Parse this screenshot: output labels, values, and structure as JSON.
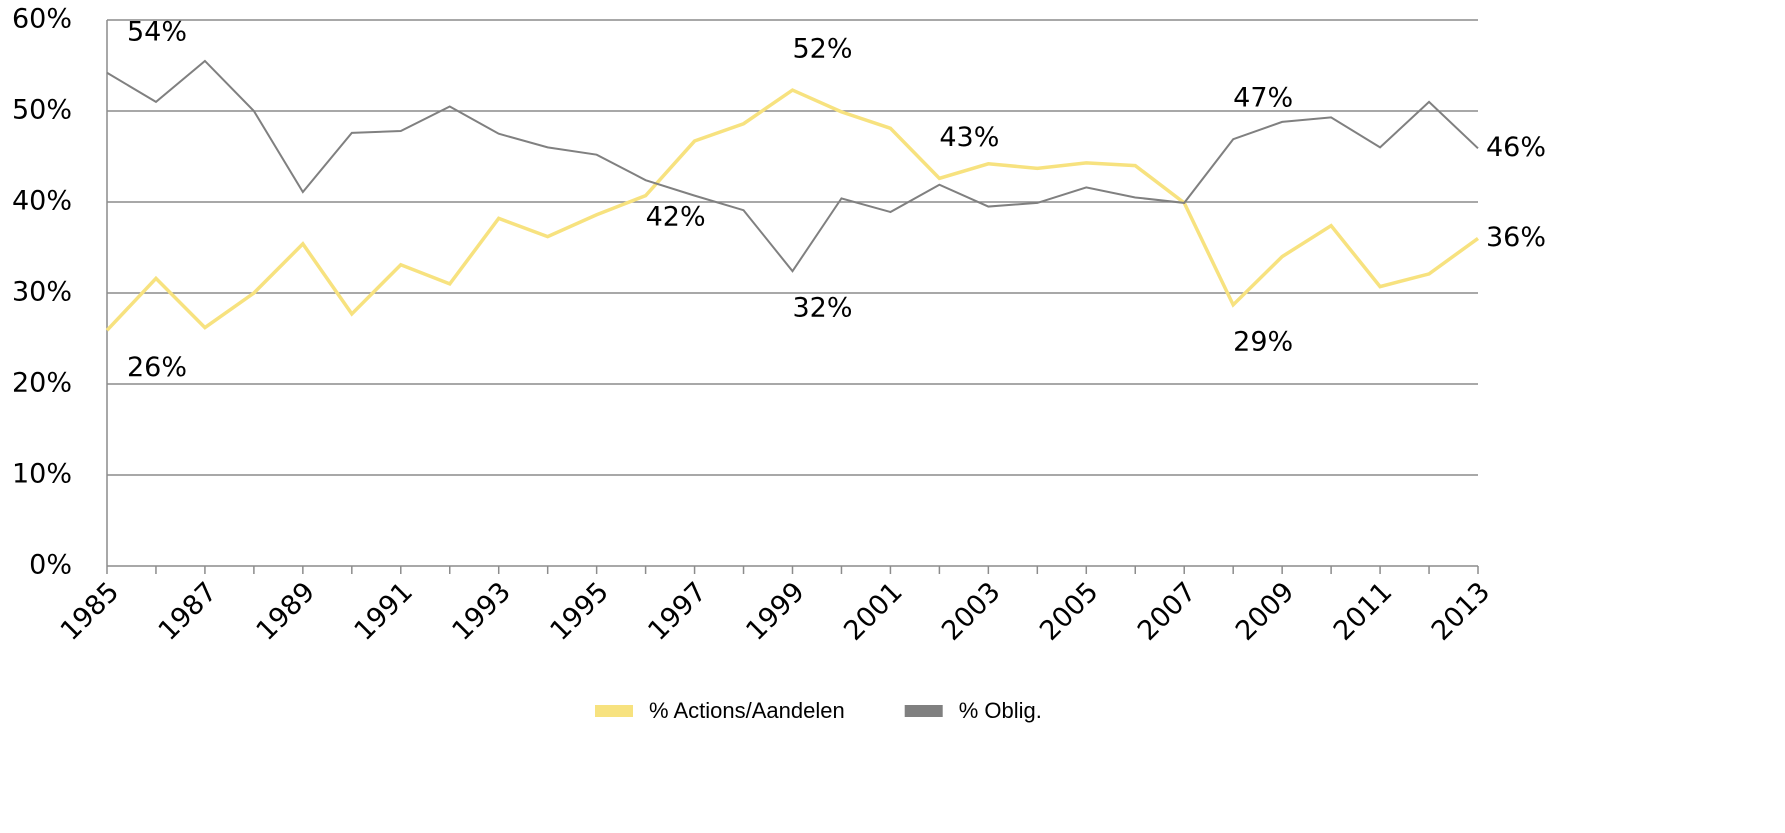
{
  "chart_data": {
    "type": "line",
    "x": [
      1985,
      1986,
      1987,
      1988,
      1989,
      1990,
      1991,
      1992,
      1993,
      1994,
      1995,
      1996,
      1997,
      1998,
      1999,
      2000,
      2001,
      2002,
      2003,
      2004,
      2005,
      2006,
      2007,
      2008,
      2009,
      2010,
      2011,
      2012,
      2013
    ],
    "xlim": [
      1985,
      2013
    ],
    "xticks": [
      1985,
      1987,
      1989,
      1991,
      1993,
      1995,
      1997,
      1999,
      2001,
      2003,
      2005,
      2007,
      2009,
      2011,
      2013
    ],
    "ylim": [
      0,
      60
    ],
    "yticks": [
      {
        "value": 0,
        "label": "0%"
      },
      {
        "value": 10,
        "label": "10%"
      },
      {
        "value": 20,
        "label": "20%"
      },
      {
        "value": 30,
        "label": "30%"
      },
      {
        "value": 40,
        "label": "40%"
      },
      {
        "value": 50,
        "label": "50%"
      },
      {
        "value": 60,
        "label": "60%"
      }
    ],
    "grid": true,
    "legend": "bottom",
    "series": [
      {
        "name": "% Actions/Aandelen",
        "color": "#f7e27f",
        "values": [
          25.9,
          31.6,
          26.2,
          30.0,
          35.4,
          27.7,
          33.1,
          31.0,
          38.2,
          36.2,
          38.6,
          40.7,
          46.7,
          48.6,
          52.3,
          49.9,
          48.1,
          42.6,
          44.2,
          43.7,
          44.3,
          44.0,
          39.9,
          28.7,
          34.0,
          37.4,
          30.7,
          32.1,
          36.0
        ],
        "value_labels": [
          "26%",
          null,
          null,
          null,
          null,
          null,
          null,
          null,
          null,
          null,
          null,
          null,
          null,
          null,
          "52%",
          null,
          null,
          "43%",
          null,
          null,
          null,
          null,
          null,
          "29%",
          null,
          null,
          null,
          null,
          "36%"
        ]
      },
      {
        "name": "% Oblig.",
        "color": "#808080",
        "values": [
          54.2,
          51.0,
          55.5,
          50.0,
          41.1,
          47.6,
          47.8,
          50.5,
          47.5,
          46.0,
          45.2,
          42.4,
          40.7,
          39.1,
          32.4,
          40.4,
          38.9,
          41.9,
          39.5,
          39.9,
          41.6,
          40.5,
          39.9,
          46.9,
          48.8,
          49.3,
          46.0,
          51.0,
          45.9
        ],
        "value_labels": [
          "54%",
          null,
          null,
          null,
          null,
          null,
          null,
          null,
          null,
          null,
          null,
          "42%",
          null,
          null,
          "32%",
          null,
          null,
          null,
          null,
          null,
          null,
          null,
          null,
          "47%",
          null,
          null,
          null,
          null,
          "46%"
        ]
      }
    ]
  }
}
